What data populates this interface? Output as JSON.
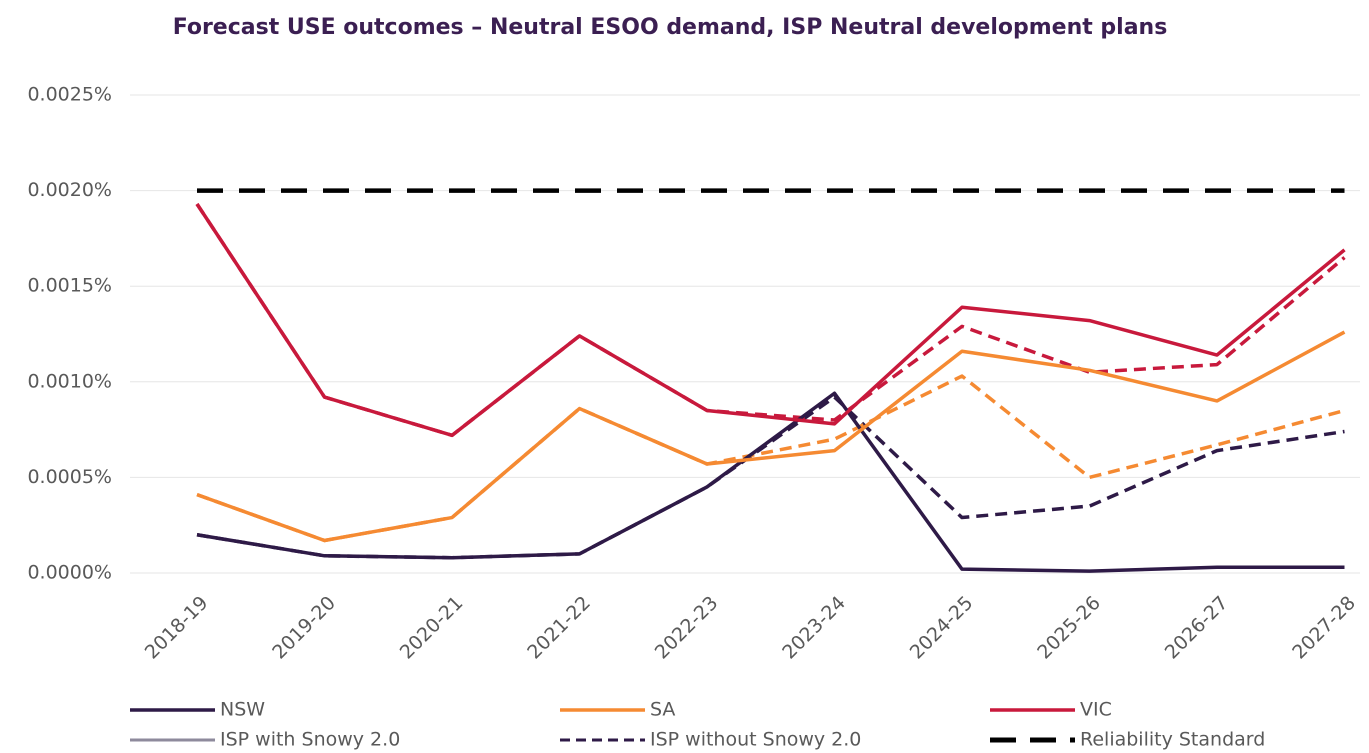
{
  "chart_data": {
    "type": "line",
    "title": "Forecast USE outcomes – Neutral ESOO demand, ISP Neutral development plans",
    "categories": [
      "2018-19",
      "2019-20",
      "2020-21",
      "2021-22",
      "2022-23",
      "2023-24",
      "2024-25",
      "2025-26",
      "2026-27",
      "2027-28"
    ],
    "ylim": [
      0,
      0.0025
    ],
    "yticks": [
      {
        "value": 0,
        "label": "0.0000%"
      },
      {
        "value": 0.0005,
        "label": "0.0005%"
      },
      {
        "value": 0.001,
        "label": "0.0010%"
      },
      {
        "value": 0.0015,
        "label": "0.0015%"
      },
      {
        "value": 0.002,
        "label": "0.0020%"
      },
      {
        "value": 0.0025,
        "label": "0.0025%"
      }
    ],
    "grid": true,
    "series": [
      {
        "name": "NSW",
        "color": "#2e1a47",
        "values": [
          0.0002,
          9e-05,
          8e-05,
          0.0001,
          0.00045,
          0.00094,
          2e-05,
          1e-05,
          3e-05,
          3e-05
        ],
        "values_without": [
          0.0002,
          9e-05,
          8e-05,
          0.0001,
          0.00045,
          0.00092,
          0.00029,
          0.00035,
          0.00064,
          0.00074
        ]
      },
      {
        "name": "SA",
        "color": "#f58a32",
        "values": [
          0.00041,
          0.00017,
          0.00029,
          0.00086,
          0.00057,
          0.00064,
          0.00116,
          0.00106,
          0.0009,
          0.00126
        ],
        "values_without": [
          0.00041,
          0.00017,
          0.00029,
          0.00086,
          0.00057,
          0.0007,
          0.00103,
          0.0005,
          0.00067,
          0.00085
        ]
      },
      {
        "name": "VIC",
        "color": "#c8193c",
        "values": [
          0.00193,
          0.00092,
          0.00072,
          0.00124,
          0.00085,
          0.00078,
          0.00139,
          0.00132,
          0.00114,
          0.00169
        ],
        "values_without": [
          0.00193,
          0.00092,
          0.00072,
          0.00124,
          0.00085,
          0.0008,
          0.00129,
          0.00105,
          0.00109,
          0.00165
        ]
      }
    ],
    "line_styles": [
      {
        "name": "ISP with Snowy 2.0",
        "color": "#8e8a9c",
        "dashed": false
      },
      {
        "name": "ISP without Snowy 2.0",
        "color": "#2e1a47",
        "dashed": true
      }
    ],
    "reference": {
      "name": "Reliability Standard",
      "value": 0.002,
      "color": "#000000"
    }
  }
}
